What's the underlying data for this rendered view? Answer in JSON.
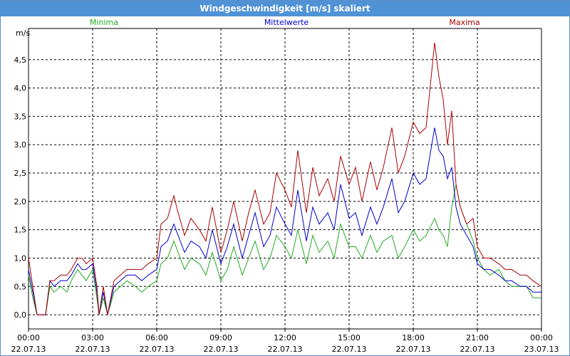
{
  "window": {
    "title": "Windgeschwindigkeit [m/s] skaliert"
  },
  "chart_data": {
    "type": "line",
    "title": "Windgeschwindigkeit [m/s] skaliert",
    "ylabel": "m/s",
    "ylim": [
      -0.25,
      5.05
    ],
    "xlim": [
      0,
      24
    ],
    "grid": true,
    "y_ticks": [
      "0,0",
      "0,5",
      "1,0",
      "1,5",
      "2,0",
      "2,5",
      "3,0",
      "3,5",
      "4,0",
      "4,5"
    ],
    "x_ticks": [
      {
        "time": "00:00",
        "date": "22.07.13"
      },
      {
        "time": "03:00",
        "date": "22.07.13"
      },
      {
        "time": "06:00",
        "date": "22.07.13"
      },
      {
        "time": "09:00",
        "date": "22.07.13"
      },
      {
        "time": "12:00",
        "date": "22.07.13"
      },
      {
        "time": "15:00",
        "date": "22.07.13"
      },
      {
        "time": "18:00",
        "date": "22.07.13"
      },
      {
        "time": "21:00",
        "date": "22.07.13"
      },
      {
        "time": "00:00",
        "date": "23.07.13"
      }
    ],
    "series": [
      {
        "name": "Minima",
        "color": "#22aa22",
        "x": [
          0,
          0.2,
          0.4,
          0.6,
          0.8,
          1,
          1.2,
          1.5,
          1.8,
          2,
          2.3,
          2.5,
          2.7,
          3,
          3.2,
          3.3,
          3.5,
          3.7,
          4,
          4.3,
          4.6,
          5,
          5.3,
          5.6,
          6,
          6.2,
          6.5,
          6.8,
          7,
          7.3,
          7.6,
          8,
          8.3,
          8.6,
          9,
          9.3,
          9.6,
          10,
          10.3,
          10.6,
          11,
          11.3,
          11.6,
          12,
          12.3,
          12.6,
          13,
          13.3,
          13.6,
          14,
          14.3,
          14.6,
          15,
          15.3,
          15.6,
          16,
          16.3,
          16.6,
          17,
          17.3,
          17.6,
          18,
          18.3,
          18.6,
          19,
          19.2,
          19.4,
          19.6,
          19.8,
          20,
          20.2,
          20.5,
          20.8,
          21,
          21.3,
          21.6,
          22,
          22.3,
          22.6,
          23,
          23.3,
          23.6,
          24
        ],
        "y": [
          0.7,
          0.3,
          0.0,
          0.0,
          0.0,
          0.5,
          0.4,
          0.5,
          0.4,
          0.6,
          0.8,
          0.7,
          0.6,
          0.8,
          0.3,
          0.0,
          0.3,
          0.0,
          0.4,
          0.5,
          0.6,
          0.5,
          0.4,
          0.5,
          0.6,
          0.9,
          1.0,
          1.3,
          1.1,
          0.8,
          1.0,
          0.9,
          0.7,
          1.1,
          0.6,
          0.8,
          1.2,
          0.7,
          1.0,
          1.3,
          0.8,
          1.0,
          1.4,
          1.2,
          1.0,
          1.5,
          0.9,
          1.4,
          1.1,
          1.3,
          1.0,
          1.6,
          1.2,
          1.2,
          1.0,
          1.4,
          1.1,
          1.3,
          1.4,
          1.0,
          1.2,
          1.5,
          1.3,
          1.4,
          1.7,
          1.5,
          1.4,
          1.2,
          1.9,
          2.3,
          1.9,
          1.6,
          1.3,
          1.0,
          0.8,
          0.7,
          0.8,
          0.6,
          0.5,
          0.5,
          0.5,
          0.3,
          0.3
        ]
      },
      {
        "name": "Mittelwerte",
        "color": "#0000cc",
        "x": [
          0,
          0.2,
          0.4,
          0.6,
          0.8,
          1,
          1.2,
          1.5,
          1.8,
          2,
          2.3,
          2.5,
          2.7,
          3,
          3.2,
          3.3,
          3.5,
          3.7,
          4,
          4.3,
          4.6,
          5,
          5.3,
          5.6,
          6,
          6.2,
          6.5,
          6.8,
          7,
          7.3,
          7.6,
          8,
          8.3,
          8.6,
          9,
          9.3,
          9.6,
          10,
          10.3,
          10.6,
          11,
          11.3,
          11.6,
          12,
          12.3,
          12.6,
          13,
          13.3,
          13.6,
          14,
          14.3,
          14.6,
          15,
          15.3,
          15.6,
          16,
          16.3,
          16.6,
          17,
          17.3,
          17.6,
          18,
          18.3,
          18.6,
          19,
          19.2,
          19.4,
          19.6,
          19.8,
          20,
          20.2,
          20.5,
          20.8,
          21,
          21.3,
          21.6,
          22,
          22.3,
          22.6,
          23,
          23.3,
          23.6,
          24
        ],
        "y": [
          0.8,
          0.4,
          0.0,
          0.0,
          0.0,
          0.6,
          0.5,
          0.6,
          0.6,
          0.7,
          0.9,
          0.8,
          0.8,
          0.9,
          0.4,
          0.0,
          0.4,
          0.0,
          0.5,
          0.6,
          0.7,
          0.7,
          0.6,
          0.7,
          0.8,
          1.2,
          1.3,
          1.6,
          1.4,
          1.1,
          1.3,
          1.2,
          1.0,
          1.5,
          0.9,
          1.2,
          1.6,
          1.0,
          1.4,
          1.8,
          1.2,
          1.4,
          1.9,
          1.6,
          1.4,
          2.2,
          1.3,
          1.9,
          1.6,
          1.8,
          1.5,
          2.3,
          1.7,
          1.8,
          1.4,
          1.9,
          1.6,
          1.9,
          2.4,
          1.8,
          2.0,
          2.5,
          2.3,
          2.4,
          3.3,
          2.9,
          2.8,
          2.4,
          2.6,
          1.9,
          1.6,
          1.4,
          1.2,
          0.9,
          0.8,
          0.8,
          0.7,
          0.6,
          0.6,
          0.5,
          0.5,
          0.4,
          0.4
        ]
      },
      {
        "name": "Maxima",
        "color": "#aa0000",
        "x": [
          0,
          0.2,
          0.4,
          0.6,
          0.8,
          1,
          1.2,
          1.5,
          1.8,
          2,
          2.3,
          2.5,
          2.7,
          3,
          3.2,
          3.3,
          3.5,
          3.7,
          4,
          4.3,
          4.6,
          5,
          5.3,
          5.6,
          6,
          6.2,
          6.5,
          6.8,
          7,
          7.3,
          7.6,
          8,
          8.3,
          8.6,
          9,
          9.3,
          9.6,
          10,
          10.3,
          10.6,
          11,
          11.3,
          11.6,
          12,
          12.3,
          12.6,
          13,
          13.3,
          13.6,
          14,
          14.3,
          14.6,
          15,
          15.3,
          15.6,
          16,
          16.3,
          16.6,
          17,
          17.3,
          17.6,
          18,
          18.3,
          18.6,
          19,
          19.2,
          19.4,
          19.6,
          19.8,
          20,
          20.2,
          20.5,
          20.8,
          21,
          21.3,
          21.6,
          22,
          22.3,
          22.6,
          23,
          23.3,
          23.6,
          24
        ],
        "y": [
          1.0,
          0.5,
          0.0,
          0.0,
          0.0,
          0.6,
          0.6,
          0.7,
          0.7,
          0.8,
          1.0,
          1.0,
          0.9,
          1.0,
          0.5,
          0.0,
          0.5,
          0.0,
          0.6,
          0.7,
          0.8,
          0.8,
          0.8,
          0.9,
          1.0,
          1.6,
          1.7,
          2.1,
          1.8,
          1.4,
          1.7,
          1.5,
          1.3,
          1.9,
          1.1,
          1.5,
          2.0,
          1.3,
          1.8,
          2.2,
          1.6,
          1.8,
          2.5,
          2.2,
          1.9,
          2.9,
          1.8,
          2.6,
          2.1,
          2.4,
          2.0,
          2.8,
          2.3,
          2.6,
          2.0,
          2.7,
          2.2,
          2.6,
          3.3,
          2.5,
          2.8,
          3.4,
          3.2,
          3.3,
          4.8,
          4.2,
          3.8,
          3.0,
          3.6,
          2.3,
          1.9,
          1.6,
          1.7,
          1.2,
          1.0,
          1.0,
          0.9,
          0.8,
          0.8,
          0.7,
          0.7,
          0.6,
          0.5
        ]
      }
    ]
  }
}
